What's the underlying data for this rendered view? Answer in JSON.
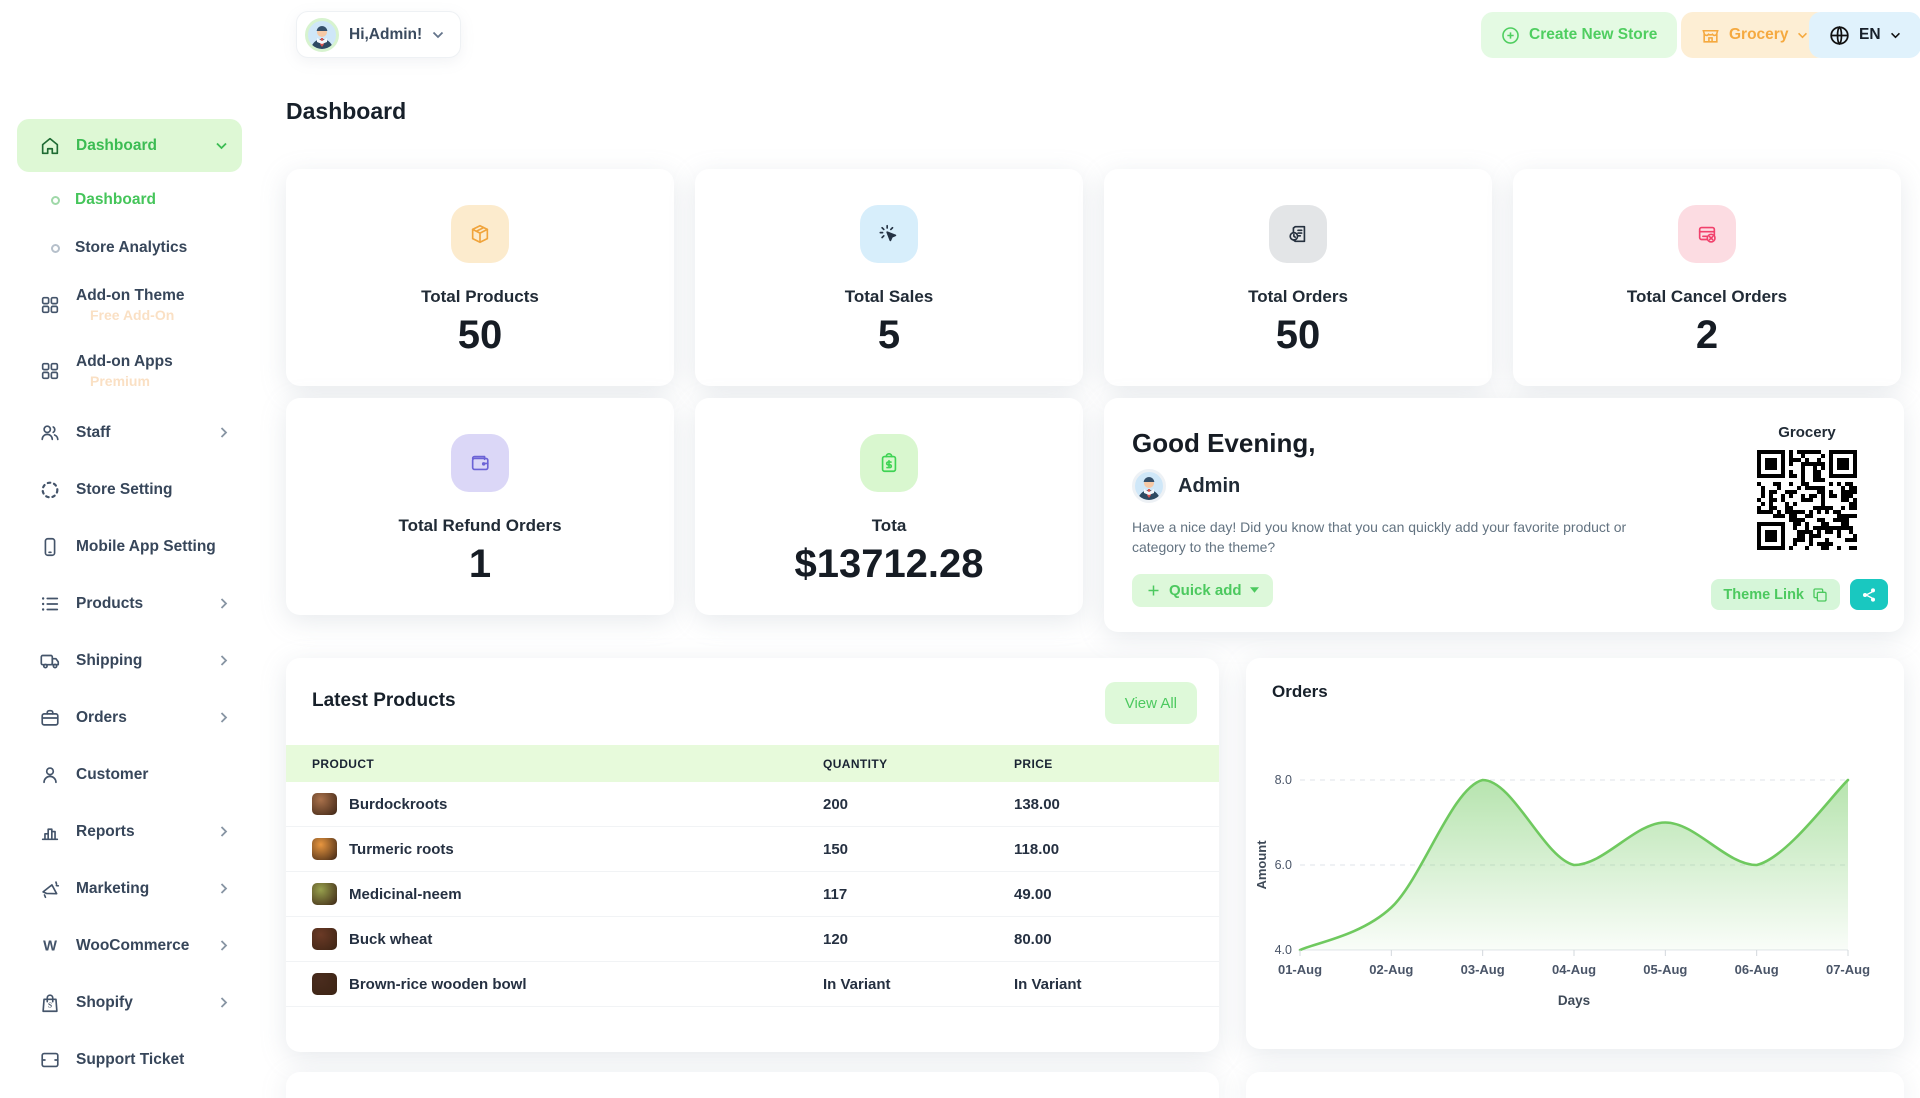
{
  "topbar": {
    "greeting": "Hi,Admin!",
    "create_store_label": "Create New Store",
    "store_name": "Grocery",
    "language": "EN",
    "accent_green": "#4fce60",
    "accent_orange": "#f5a93f"
  },
  "page_title": "Dashboard",
  "sidebar": {
    "items": [
      {
        "label": "Dashboard",
        "icon": "home",
        "type": "pill",
        "chevron": "down"
      },
      {
        "label": "Dashboard",
        "type": "sub",
        "active": true
      },
      {
        "label": "Store Analytics",
        "type": "sub"
      },
      {
        "label": "Add-on Theme",
        "icon": "grid",
        "badge": "Free Add-On"
      },
      {
        "label": "Add-on Apps",
        "icon": "grid",
        "badge": "Premium"
      },
      {
        "label": "Staff",
        "icon": "users",
        "chevron": "right"
      },
      {
        "label": "Store Setting",
        "icon": "loader"
      },
      {
        "label": "Mobile App Setting",
        "icon": "smartphone"
      },
      {
        "label": "Products",
        "icon": "list",
        "chevron": "right"
      },
      {
        "label": "Shipping",
        "icon": "truck",
        "chevron": "right"
      },
      {
        "label": "Orders",
        "icon": "briefcase",
        "chevron": "right"
      },
      {
        "label": "Customer",
        "icon": "user"
      },
      {
        "label": "Reports",
        "icon": "bar-chart",
        "chevron": "right"
      },
      {
        "label": "Marketing",
        "icon": "megaphone",
        "chevron": "right"
      },
      {
        "label": "WooCommerce",
        "icon": "woo",
        "chevron": "right"
      },
      {
        "label": "Shopify",
        "icon": "bag",
        "chevron": "right"
      },
      {
        "label": "Support Ticket",
        "icon": "ticket"
      }
    ]
  },
  "stats": [
    {
      "label": "Total Products",
      "value": "50",
      "icon": "package",
      "tile_bg": "#fcebcd",
      "icon_color": "#f0a43c"
    },
    {
      "label": "Total Sales",
      "value": "5",
      "icon": "click",
      "tile_bg": "#d7eefb",
      "icon_color": "#243244"
    },
    {
      "label": "Total Orders",
      "value": "50",
      "icon": "invoice-clock",
      "tile_bg": "#e3e5e7",
      "icon_color": "#26313f"
    },
    {
      "label": "Total Cancel Orders",
      "value": "2",
      "icon": "card-cancel",
      "tile_bg": "#fcdce2",
      "icon_color": "#f1416c"
    },
    {
      "label": "Total Refund Orders",
      "value": "1",
      "icon": "wallet",
      "tile_bg": "#dbd7f7",
      "icon_color": "#6c63d6"
    },
    {
      "label": "Tota",
      "value": "$13712.28",
      "icon": "clipboard-dollar",
      "tile_bg": "#d9f7cf",
      "icon_color": "#3fd354"
    }
  ],
  "greeting_card": {
    "title": "Good Evening,",
    "user_name": "Admin",
    "message": "Have a nice day! Did you know that you can quickly add your favorite product or category to the theme?",
    "quick_add_label": "Quick add",
    "qr_label": "Grocery",
    "theme_link_label": "Theme Link"
  },
  "latest_products": {
    "title": "Latest Products",
    "view_all_label": "View All",
    "columns": [
      "PRODUCT",
      "QUANTITY",
      "PRICE"
    ],
    "rows": [
      {
        "product": "Burdockroots",
        "quantity": "200",
        "price": "138.00",
        "thumb_color": "#a9714b"
      },
      {
        "product": "Turmeric roots",
        "quantity": "150",
        "price": "118.00",
        "thumb_color": "#e8963f"
      },
      {
        "product": "Medicinal-neem",
        "quantity": "117",
        "price": "49.00",
        "thumb_color": "#97a04d"
      },
      {
        "product": "Buck wheat",
        "quantity": "120",
        "price": "80.00",
        "thumb_color": "#6b3a26"
      },
      {
        "product": "Brown-rice wooden bowl",
        "quantity": "In Variant",
        "price": "In Variant",
        "thumb_color": "#4a2c1e"
      }
    ]
  },
  "chart_data": {
    "type": "area",
    "title": "Orders",
    "x": [
      "01-Aug",
      "02-Aug",
      "03-Aug",
      "04-Aug",
      "05-Aug",
      "06-Aug",
      "07-Aug"
    ],
    "values": [
      4,
      5,
      8,
      6,
      7,
      6,
      8
    ],
    "xlabel": "Days",
    "ylabel": "Amount",
    "ylim": [
      4,
      8
    ],
    "yticks": [
      4.0,
      6.0,
      8.0
    ],
    "grid": "dashed horizontal at 6.0 and 8.0, solid baseline at 4.0",
    "legend": "none",
    "line_color": "#6fc95f",
    "fill_top": "rgba(111,201,95,0.5)",
    "fill_bottom": "rgba(111,201,95,0.04)"
  }
}
